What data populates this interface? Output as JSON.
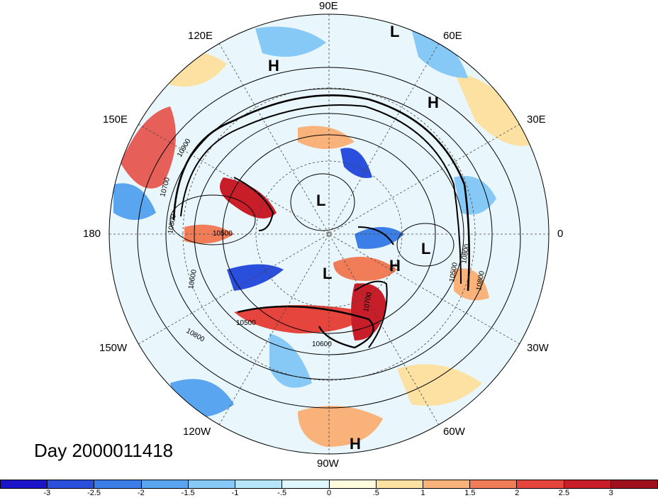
{
  "title": "Day 2000011418",
  "lon_labels": {
    "n": "90E",
    "ne": "60E",
    "nne": "120E",
    "e": "30E",
    "ene": "150E",
    "r": "0",
    "l": "180",
    "sw": "150W",
    "se": "30W",
    "ssw": "120W",
    "sse": "60W",
    "s": "90W"
  },
  "centers": [
    "L",
    "H",
    "H",
    "L",
    "L",
    "L",
    "H",
    "H"
  ],
  "contour_labels": [
    "10900",
    "10700",
    "10800",
    "10500",
    "10600",
    "10800",
    "10500",
    "10700",
    "10800",
    "10800",
    "10500",
    "10600"
  ],
  "colorbar": {
    "colors": [
      "#1b14c9",
      "#2a4fdc",
      "#3c7ee8",
      "#5aa5f0",
      "#86c9f6",
      "#b7e6fb",
      "#e0f6fd",
      "#fffbdc",
      "#fde1a2",
      "#f9b27a",
      "#f07d58",
      "#e5453c",
      "#c81e2a",
      "#a0101c"
    ],
    "labels": [
      "-3",
      "-2.5",
      "-2",
      "-1.5",
      "-1",
      "-.5",
      "0",
      ".5",
      "1",
      "1.5",
      "2",
      "2.5",
      "3"
    ]
  }
}
